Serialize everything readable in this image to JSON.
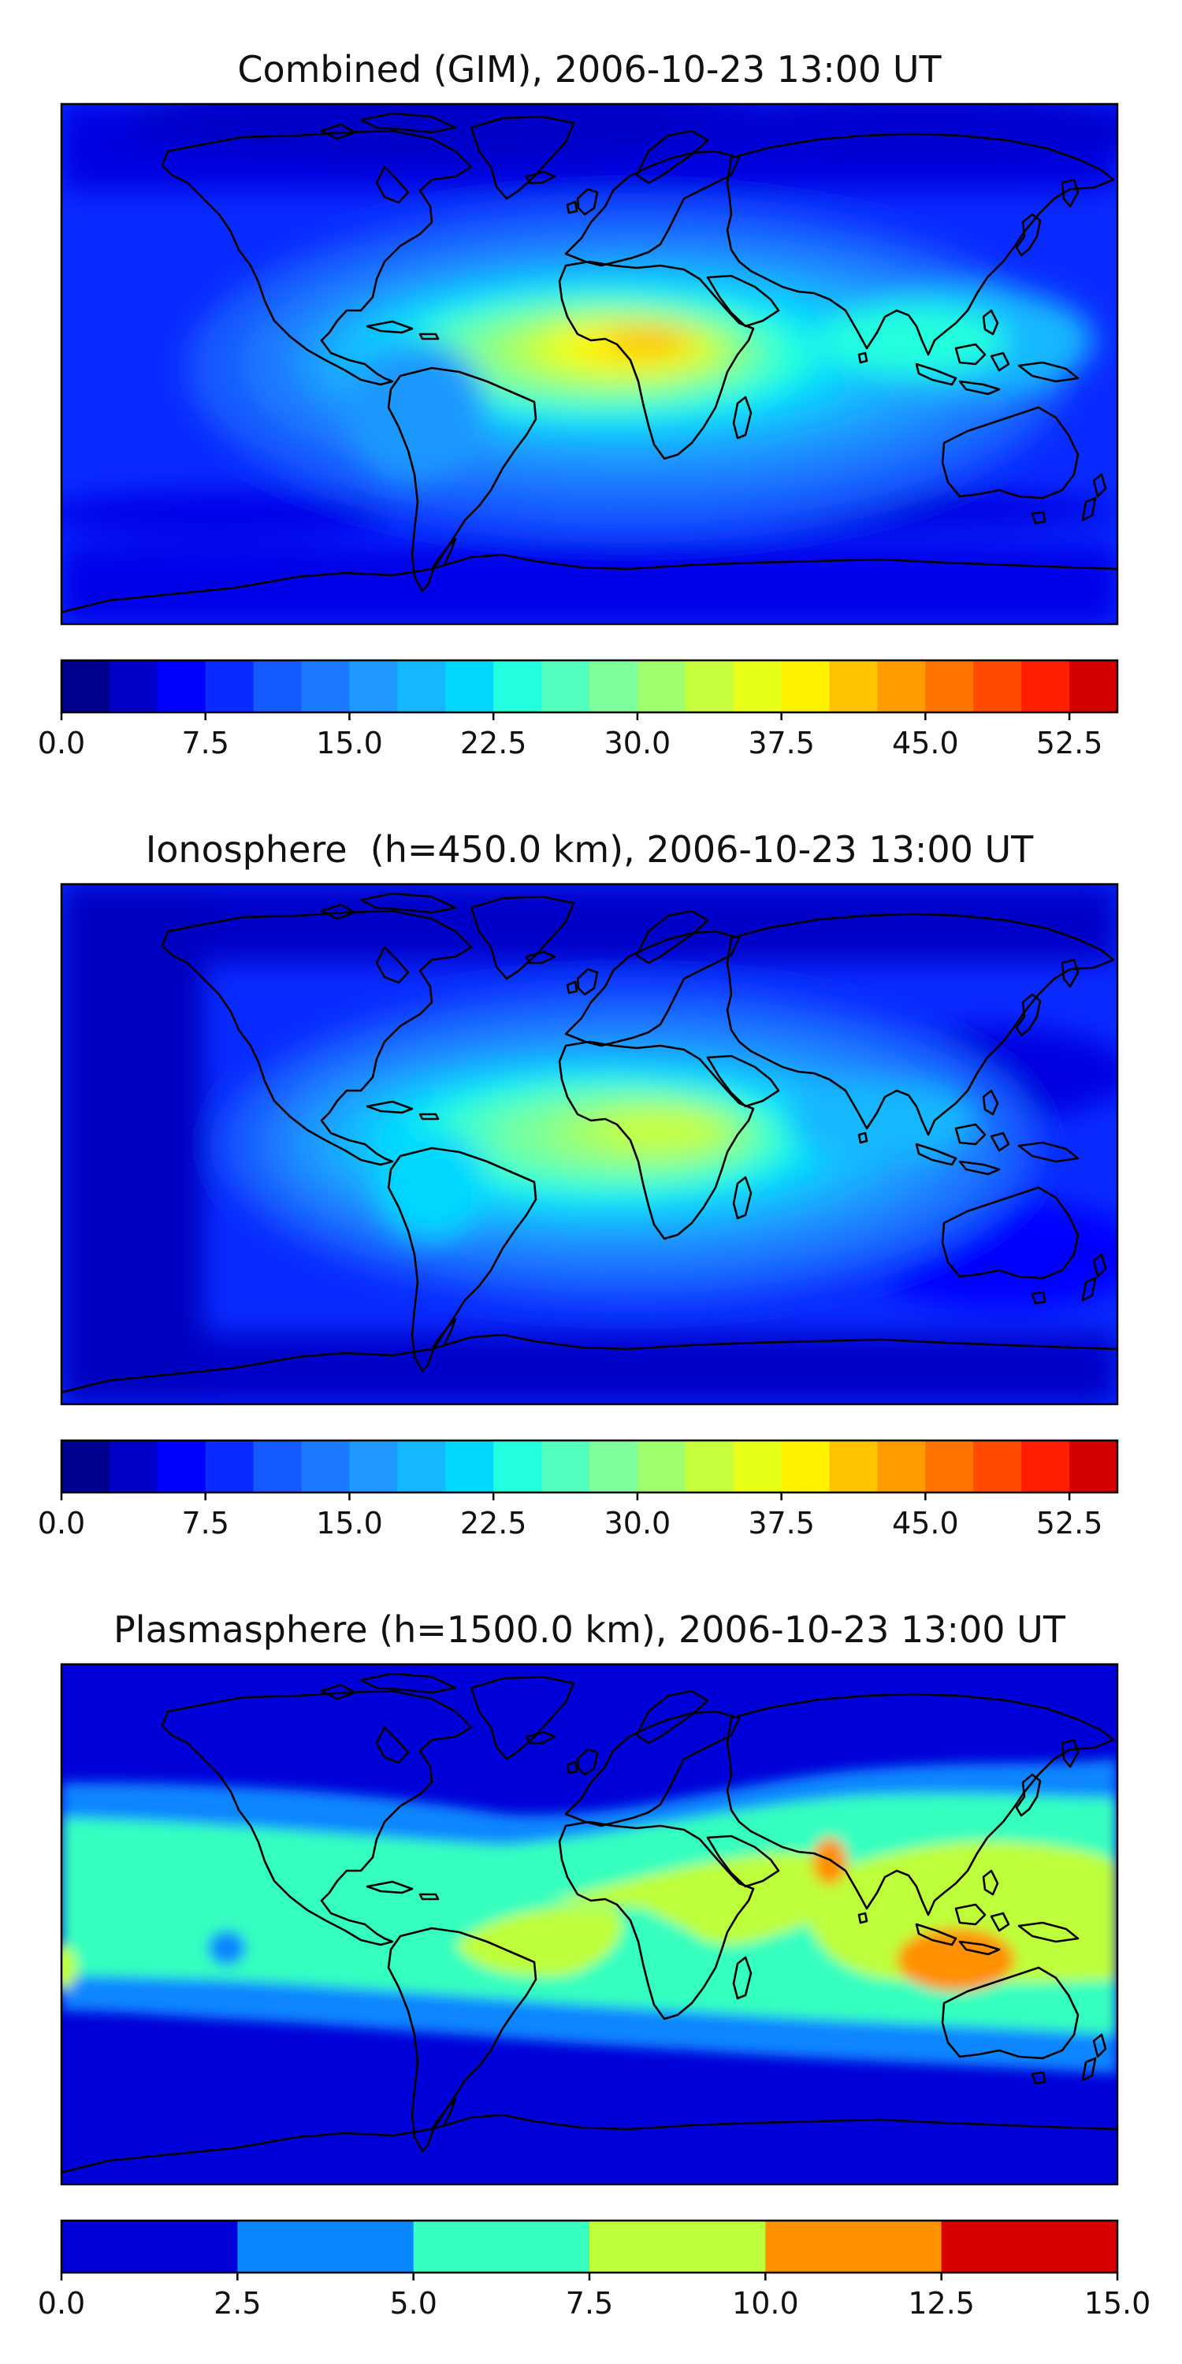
{
  "chart_data": [
    {
      "type": "heatmap",
      "title": "Combined (GIM), 2006-10-23 13:00 UT",
      "xlabel": "",
      "ylabel": "",
      "quantity": "filled contour map over world coastlines",
      "projection": "equirectangular",
      "colormap": "jet",
      "levels": [
        0,
        2.5,
        5,
        7.5,
        10,
        12.5,
        15,
        17.5,
        20,
        22.5,
        25,
        27.5,
        30,
        32.5,
        35,
        37.5,
        40,
        42.5,
        45,
        47.5,
        50,
        52.5,
        55
      ],
      "colorbar_ticks": [
        "0.0",
        "7.5",
        "15.0",
        "22.5",
        "30.0",
        "37.5",
        "45.0",
        "52.5"
      ],
      "colorbar_tick_values": [
        0,
        7.5,
        15,
        22.5,
        30,
        37.5,
        45,
        52.5
      ],
      "colorbar_range": [
        0,
        55
      ],
      "peak_value": 40,
      "peak_region": "equatorial Africa",
      "colorbar_colors": [
        "#00008f",
        "#0000c8",
        "#0000ff",
        "#0a2bff",
        "#155aff",
        "#1a79ff",
        "#1f98ff",
        "#14b8ff",
        "#00d8ff",
        "#21ffde",
        "#52ffbe",
        "#7dff9b",
        "#a0ff6c",
        "#c7ff3c",
        "#e8ff17",
        "#fff200",
        "#ffc300",
        "#ff9d00",
        "#ff7300",
        "#ff4a00",
        "#ff1e00",
        "#d40000",
        "#8f0000"
      ]
    },
    {
      "type": "heatmap",
      "title": "Ionosphere  (h=450.0 km), 2006-10-23 13:00 UT",
      "xlabel": "",
      "ylabel": "",
      "quantity": "filled contour map over world coastlines",
      "projection": "equirectangular",
      "colormap": "jet",
      "levels": [
        0,
        2.5,
        5,
        7.5,
        10,
        12.5,
        15,
        17.5,
        20,
        22.5,
        25,
        27.5,
        30,
        32.5,
        35,
        37.5,
        40,
        42.5,
        45,
        47.5,
        50,
        52.5,
        55
      ],
      "colorbar_ticks": [
        "0.0",
        "7.5",
        "15.0",
        "22.5",
        "30.0",
        "37.5",
        "45.0",
        "52.5"
      ],
      "colorbar_tick_values": [
        0,
        7.5,
        15,
        22.5,
        30,
        37.5,
        45,
        52.5
      ],
      "colorbar_range": [
        0,
        55
      ],
      "peak_value": 32.5,
      "peak_region": "equatorial Africa",
      "colorbar_colors": [
        "#00008f",
        "#0000c8",
        "#0000ff",
        "#0a2bff",
        "#155aff",
        "#1a79ff",
        "#1f98ff",
        "#14b8ff",
        "#00d8ff",
        "#21ffde",
        "#52ffbe",
        "#7dff9b",
        "#a0ff6c",
        "#c7ff3c",
        "#e8ff17",
        "#fff200",
        "#ffc300",
        "#ff9d00",
        "#ff7300",
        "#ff4a00",
        "#ff1e00",
        "#d40000",
        "#8f0000"
      ]
    },
    {
      "type": "heatmap",
      "title": "Plasmasphere (h=1500.0 km), 2006-10-23 13:00 UT",
      "xlabel": "",
      "ylabel": "",
      "quantity": "filled contour map over world coastlines",
      "projection": "equirectangular",
      "colormap": "jet",
      "levels": [
        0,
        2.5,
        5,
        7.5,
        10,
        12.5,
        15
      ],
      "colorbar_ticks": [
        "0.0",
        "2.5",
        "5.0",
        "7.5",
        "10.0",
        "12.5",
        "15.0"
      ],
      "colorbar_tick_values": [
        0,
        2.5,
        5,
        7.5,
        10,
        12.5,
        15
      ],
      "colorbar_range": [
        0,
        15
      ],
      "peak_value": 12.5,
      "peak_region": "Indonesia / Indian subcontinent",
      "colorbar_colors": [
        "#0000d8",
        "#0a86ff",
        "#36ffbf",
        "#bdff3a",
        "#ff9000",
        "#d80000"
      ]
    }
  ]
}
